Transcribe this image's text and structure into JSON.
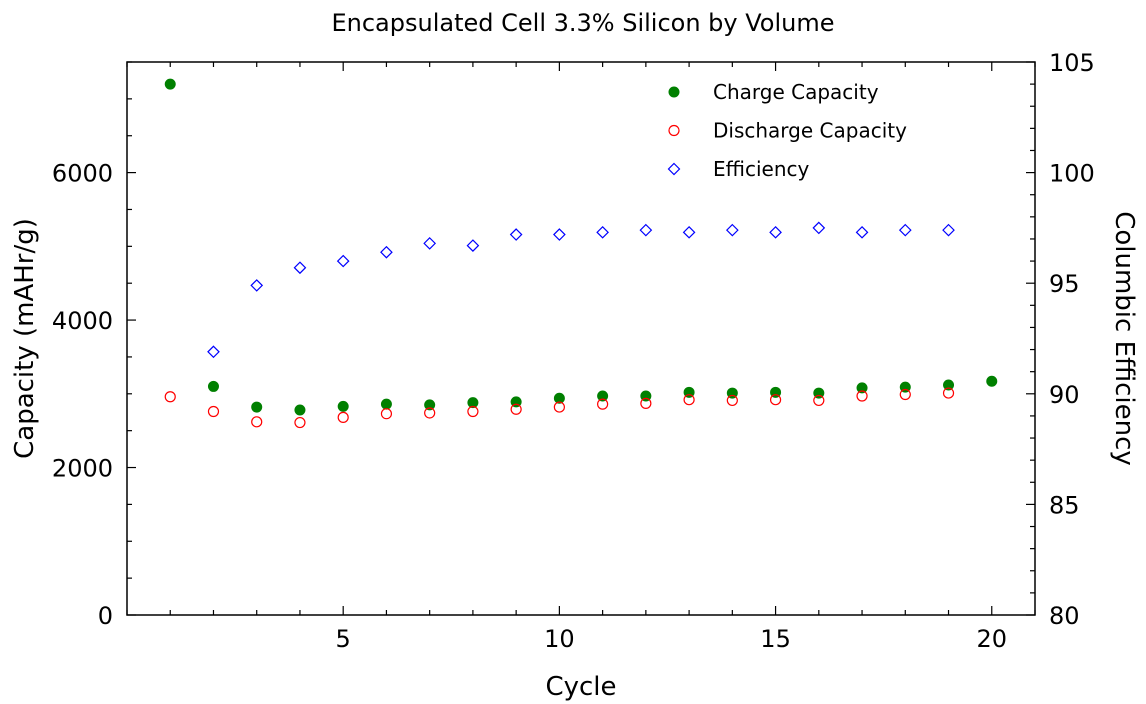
{
  "chart_data": {
    "type": "scatter",
    "title": "Encapsulated Cell 3.3% Silicon by Volume",
    "xlabel": "Cycle",
    "ylabel_left": "Capacity (mAHr/g)",
    "ylabel_right": "Columbic Efficiency",
    "xlim": [
      0,
      21
    ],
    "ylim_left": [
      0,
      7500
    ],
    "ylim_right": [
      80,
      105
    ],
    "x_ticks": [
      5,
      10,
      15,
      20
    ],
    "y_left_ticks": [
      0,
      2000,
      4000,
      6000
    ],
    "y_right_ticks": [
      80,
      85,
      90,
      95,
      100,
      105
    ],
    "grid": false,
    "legend_position": "top-right",
    "series": [
      {
        "name": "Charge Capacity",
        "axis": "left",
        "marker": "filled-circle",
        "color": "#008000",
        "x": [
          1,
          2,
          3,
          4,
          5,
          6,
          7,
          8,
          9,
          10,
          11,
          12,
          13,
          14,
          15,
          16,
          17,
          18,
          19,
          20
        ],
        "y": [
          7200,
          3100,
          2820,
          2780,
          2830,
          2860,
          2850,
          2880,
          2890,
          2940,
          2970,
          2970,
          3020,
          3010,
          3020,
          3010,
          3080,
          3090,
          3120,
          3170
        ]
      },
      {
        "name": "Discharge Capacity",
        "axis": "left",
        "marker": "open-circle",
        "color": "#ff0000",
        "x": [
          1,
          2,
          3,
          4,
          5,
          6,
          7,
          8,
          9,
          10,
          11,
          12,
          13,
          14,
          15,
          16,
          17,
          18,
          19
        ],
        "y": [
          2960,
          2760,
          2620,
          2610,
          2680,
          2730,
          2740,
          2760,
          2790,
          2820,
          2860,
          2870,
          2920,
          2910,
          2920,
          2910,
          2970,
          2990,
          3010
        ]
      },
      {
        "name": "Efficiency",
        "axis": "right",
        "marker": "open-diamond",
        "color": "#0000ff",
        "x": [
          2,
          3,
          4,
          5,
          6,
          7,
          8,
          9,
          10,
          11,
          12,
          13,
          14,
          15,
          16,
          17,
          18,
          19
        ],
        "y": [
          91.9,
          94.9,
          95.7,
          96.0,
          96.4,
          96.8,
          96.7,
          97.2,
          97.2,
          97.3,
          97.4,
          97.3,
          97.4,
          97.3,
          97.5,
          97.3,
          97.4,
          97.4
        ]
      }
    ]
  }
}
